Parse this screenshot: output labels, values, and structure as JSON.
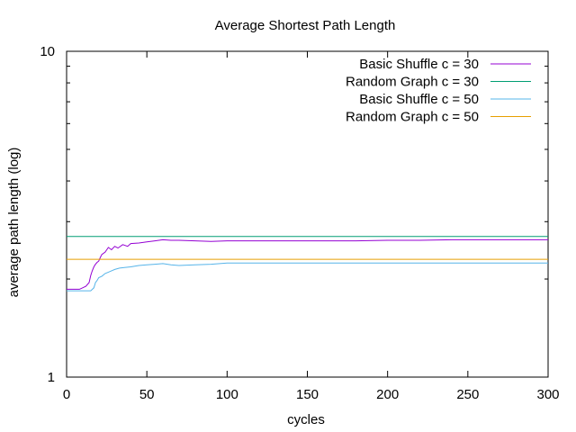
{
  "chart_data": {
    "type": "line",
    "title": "Average Shortest Path Length",
    "xlabel": "cycles",
    "ylabel": "average path length (log)",
    "xlim": [
      0,
      300
    ],
    "ylim": [
      1,
      10
    ],
    "yscale": "log",
    "grid": false,
    "legend_position": "top-right",
    "x_ticks": [
      0,
      50,
      100,
      150,
      200,
      250,
      300
    ],
    "x_tick_labels": [
      "0",
      "50",
      "100",
      "150",
      "200",
      "250",
      "300"
    ],
    "y_ticks": [
      1,
      10
    ],
    "y_tick_labels": [
      "1",
      "10"
    ],
    "series": [
      {
        "name": "Basic Shuffle c = 30",
        "color": "#9400d3",
        "points": [
          [
            0,
            1.86
          ],
          [
            8,
            1.86
          ],
          [
            10,
            1.88
          ],
          [
            12,
            1.9
          ],
          [
            14,
            1.95
          ],
          [
            15,
            2.05
          ],
          [
            16,
            2.12
          ],
          [
            17,
            2.18
          ],
          [
            18,
            2.22
          ],
          [
            19,
            2.25
          ],
          [
            20,
            2.27
          ],
          [
            21,
            2.33
          ],
          [
            22,
            2.38
          ],
          [
            24,
            2.42
          ],
          [
            26,
            2.5
          ],
          [
            28,
            2.46
          ],
          [
            30,
            2.52
          ],
          [
            32,
            2.49
          ],
          [
            35,
            2.55
          ],
          [
            38,
            2.52
          ],
          [
            40,
            2.57
          ],
          [
            45,
            2.58
          ],
          [
            50,
            2.6
          ],
          [
            55,
            2.62
          ],
          [
            60,
            2.64
          ],
          [
            65,
            2.63
          ],
          [
            70,
            2.63
          ],
          [
            80,
            2.62
          ],
          [
            90,
            2.61
          ],
          [
            100,
            2.62
          ],
          [
            120,
            2.62
          ],
          [
            140,
            2.62
          ],
          [
            160,
            2.62
          ],
          [
            180,
            2.62
          ],
          [
            200,
            2.63
          ],
          [
            220,
            2.63
          ],
          [
            240,
            2.64
          ],
          [
            260,
            2.64
          ],
          [
            280,
            2.64
          ],
          [
            300,
            2.64
          ]
        ]
      },
      {
        "name": "Random Graph c = 30",
        "color": "#009e73",
        "points": [
          [
            0,
            2.7
          ],
          [
            300,
            2.7
          ]
        ]
      },
      {
        "name": "Basic Shuffle c = 50",
        "color": "#56b4e9",
        "points": [
          [
            0,
            1.84
          ],
          [
            15,
            1.84
          ],
          [
            17,
            1.88
          ],
          [
            18,
            1.95
          ],
          [
            19,
            1.98
          ],
          [
            20,
            2.02
          ],
          [
            22,
            2.04
          ],
          [
            24,
            2.08
          ],
          [
            26,
            2.1
          ],
          [
            28,
            2.12
          ],
          [
            30,
            2.14
          ],
          [
            33,
            2.16
          ],
          [
            36,
            2.17
          ],
          [
            40,
            2.18
          ],
          [
            45,
            2.2
          ],
          [
            50,
            2.21
          ],
          [
            55,
            2.22
          ],
          [
            60,
            2.23
          ],
          [
            65,
            2.21
          ],
          [
            70,
            2.2
          ],
          [
            80,
            2.21
          ],
          [
            90,
            2.22
          ],
          [
            100,
            2.24
          ],
          [
            120,
            2.24
          ],
          [
            140,
            2.24
          ],
          [
            160,
            2.24
          ],
          [
            180,
            2.24
          ],
          [
            200,
            2.24
          ],
          [
            220,
            2.24
          ],
          [
            240,
            2.24
          ],
          [
            260,
            2.24
          ],
          [
            280,
            2.24
          ],
          [
            300,
            2.24
          ]
        ]
      },
      {
        "name": "Random Graph c = 50",
        "color": "#e69f00",
        "points": [
          [
            0,
            2.3
          ],
          [
            300,
            2.3
          ]
        ]
      }
    ]
  }
}
